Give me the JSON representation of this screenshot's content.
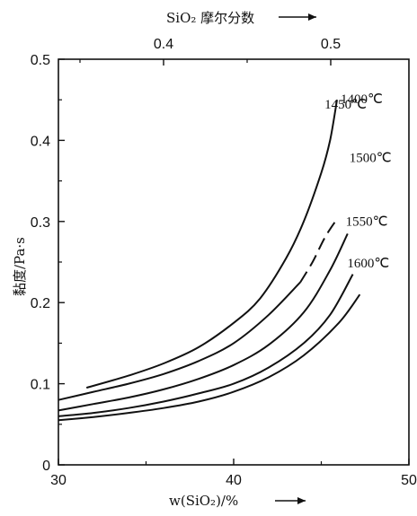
{
  "chart_data": {
    "type": "line",
    "title": "",
    "x_bottom": {
      "label": "w(SiO₂)/%",
      "range": [
        30,
        50
      ],
      "ticks": [
        "30",
        "40",
        "50"
      ]
    },
    "x_top": {
      "label": "SiO₂ 摩尔分数",
      "ticks": [
        "0.4",
        "0.5"
      ]
    },
    "y": {
      "label": "黏度/Pa·s",
      "range": [
        0,
        0.5
      ],
      "ticks": [
        "0",
        "0.1",
        "0.2",
        "0.3",
        "0.4",
        "0.5"
      ]
    },
    "grid": false,
    "legend": "none",
    "series": [
      {
        "name": "1400℃",
        "style": "solid",
        "x": [
          31.6,
          34,
          36,
          38,
          40,
          41.5,
          43,
          44,
          45,
          45.5,
          45.9
        ],
        "y": [
          0.095,
          0.11,
          0.125,
          0.145,
          0.175,
          0.205,
          0.255,
          0.3,
          0.36,
          0.4,
          0.45
        ]
      },
      {
        "name": "1450℃",
        "style": "solid-then-dashed",
        "dash_from_x": 43.8,
        "x": [
          30,
          32,
          34,
          36,
          38,
          40,
          42,
          43.8,
          44.5,
          45.2,
          45.8
        ],
        "y": [
          0.08,
          0.09,
          0.1,
          0.112,
          0.128,
          0.15,
          0.185,
          0.225,
          0.25,
          0.28,
          0.3
        ]
      },
      {
        "name": "1500℃",
        "style": "solid",
        "x": [
          30,
          32,
          34,
          36,
          38,
          40,
          42,
          44,
          45.5,
          46.5
        ],
        "y": [
          0.067,
          0.075,
          0.083,
          0.093,
          0.106,
          0.123,
          0.148,
          0.188,
          0.24,
          0.285
        ]
      },
      {
        "name": "1550℃",
        "style": "solid",
        "x": [
          30,
          32,
          34,
          36,
          38,
          40,
          42,
          44,
          45.5,
          46.8
        ],
        "y": [
          0.06,
          0.064,
          0.07,
          0.078,
          0.088,
          0.1,
          0.12,
          0.15,
          0.185,
          0.235
        ]
      },
      {
        "name": "1600℃",
        "style": "solid",
        "x": [
          30,
          32,
          34,
          36,
          38,
          40,
          42,
          44,
          46,
          47.2
        ],
        "y": [
          0.055,
          0.059,
          0.064,
          0.07,
          0.078,
          0.09,
          0.108,
          0.135,
          0.175,
          0.21
        ]
      }
    ]
  }
}
